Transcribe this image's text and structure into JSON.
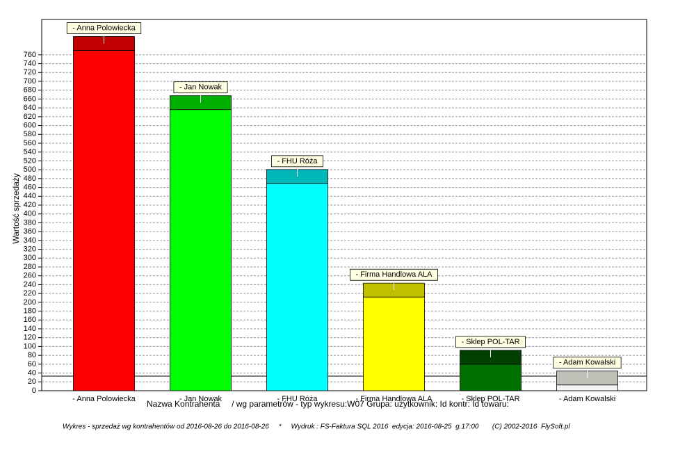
{
  "chart_data": {
    "type": "bar",
    "y_label": "Wartość sprzedaży",
    "x_label": "Nazwa Kontrahenta     / wg parametrów - typ wykresu:W07 Grupa: użytkownik: Id kontr: Id towaru:",
    "footer": "Wykres - sprzedaż wg kontrahentów od 2016-08-26 do 2016-08-26     *     Wydruk : FS-Faktura SQL 2016  edycja: 2016-08-25  g.17:00       (C) 2002-2016  FlySoft.pl",
    "categories": [
      "-  Anna Polowiecka",
      "-  Jan Nowak",
      "-  FHU Róża",
      "-  Firma Handlowa ALA",
      "-  Sklep POL-TAR",
      "-  Adam Kowalski"
    ],
    "values": [
      770,
      636,
      469,
      212,
      60,
      13
    ],
    "colors": [
      "#ff0000",
      "#00ff00",
      "#00ffff",
      "#ffff00",
      "#007000",
      "#f4f4f4"
    ],
    "cap_colors": [
      "#c00000",
      "#00b000",
      "#00b8b8",
      "#c0c000",
      "#004000",
      "#c0c0b8"
    ],
    "ylim": [
      0,
      840
    ],
    "yticks": [
      0,
      20,
      40,
      60,
      80,
      100,
      120,
      140,
      160,
      180,
      200,
      220,
      240,
      260,
      280,
      300,
      320,
      340,
      360,
      380,
      400,
      420,
      440,
      460,
      480,
      500,
      520,
      540,
      560,
      580,
      600,
      620,
      640,
      660,
      680,
      700,
      720,
      740,
      760
    ],
    "grid": true
  }
}
